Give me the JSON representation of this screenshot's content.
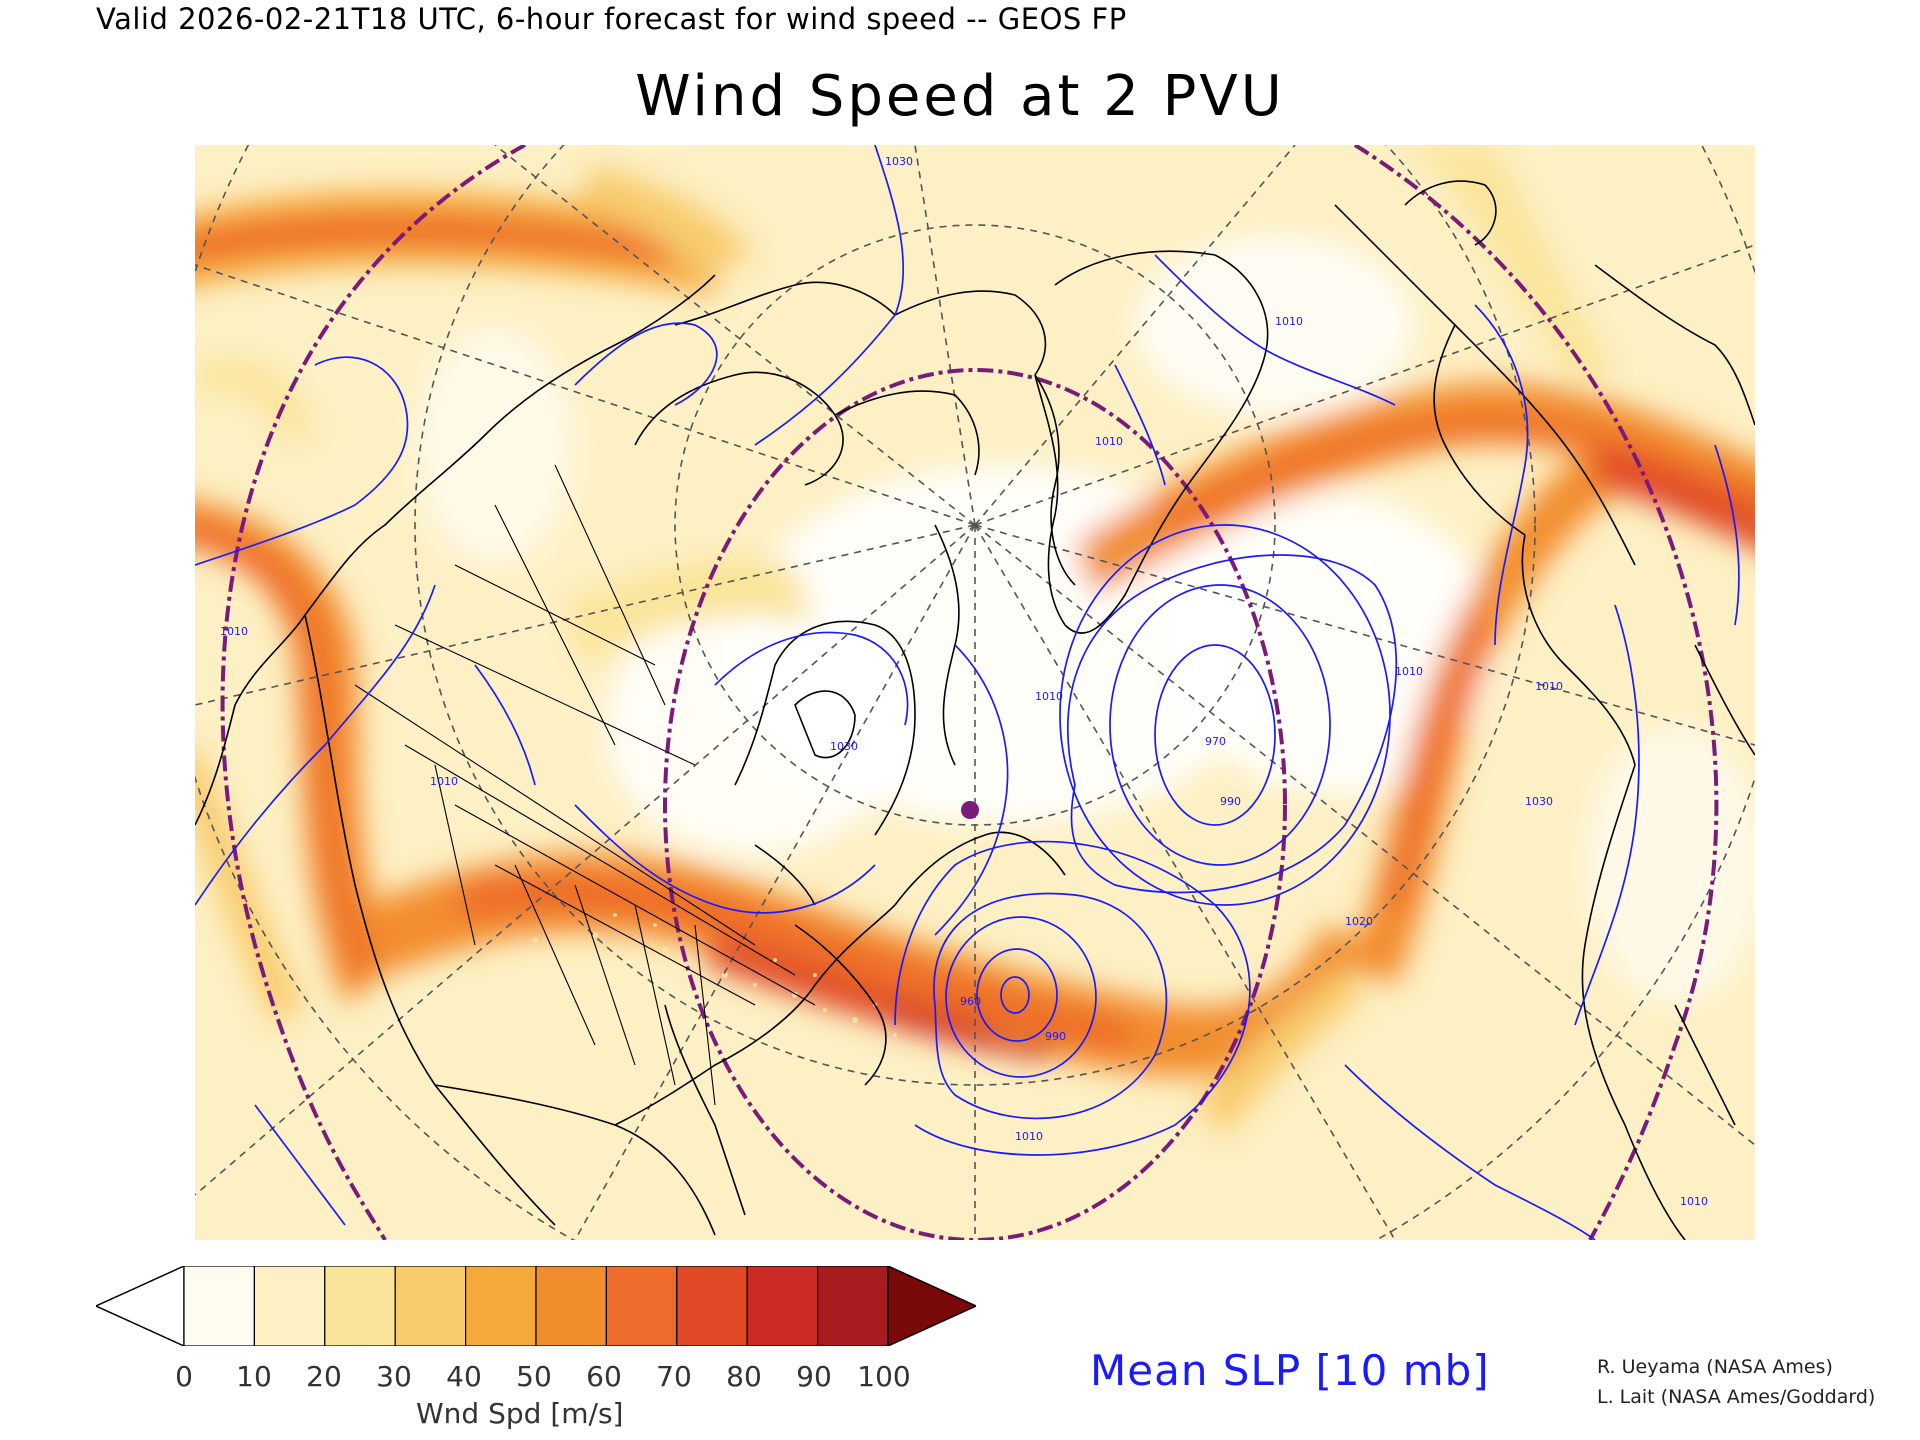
{
  "header": {
    "valid_line": "Valid 2026-02-21T18 UTC, 6-hour forecast for wind speed -- GEOS FP",
    "title": "Wind Speed at 2 PVU"
  },
  "map": {
    "contour_color": "#1a1aff",
    "coast_color": "#000000",
    "graticule_color": "#555555",
    "dashdot_color": "#7a1a7a",
    "contour_labels": [
      "1030",
      "1010",
      "1010",
      "1010",
      "1030",
      "1010",
      "970",
      "990",
      "960",
      "990",
      "1010",
      "1010",
      "1030",
      "1010",
      "1010",
      "1010",
      "1020"
    ]
  },
  "legend": {
    "ticks": [
      "0",
      "10",
      "20",
      "30",
      "40",
      "50",
      "60",
      "70",
      "80",
      "90",
      "100"
    ],
    "unit": "Wnd Spd [m/s]",
    "colors": [
      "#ffffff",
      "#fffbf0",
      "#fdf0c4",
      "#fae49a",
      "#f8cb6d",
      "#f5a93a",
      "#f28d2e",
      "#ee6c2b",
      "#e04a27",
      "#cc2a25",
      "#a81b1f",
      "#7a0a0a"
    ]
  },
  "overlay": {
    "label": "Mean SLP [10 mb]"
  },
  "credits": {
    "line1": "R. Ueyama (NASA Ames)",
    "line2": "L. Lait (NASA Ames/Goddard)"
  }
}
